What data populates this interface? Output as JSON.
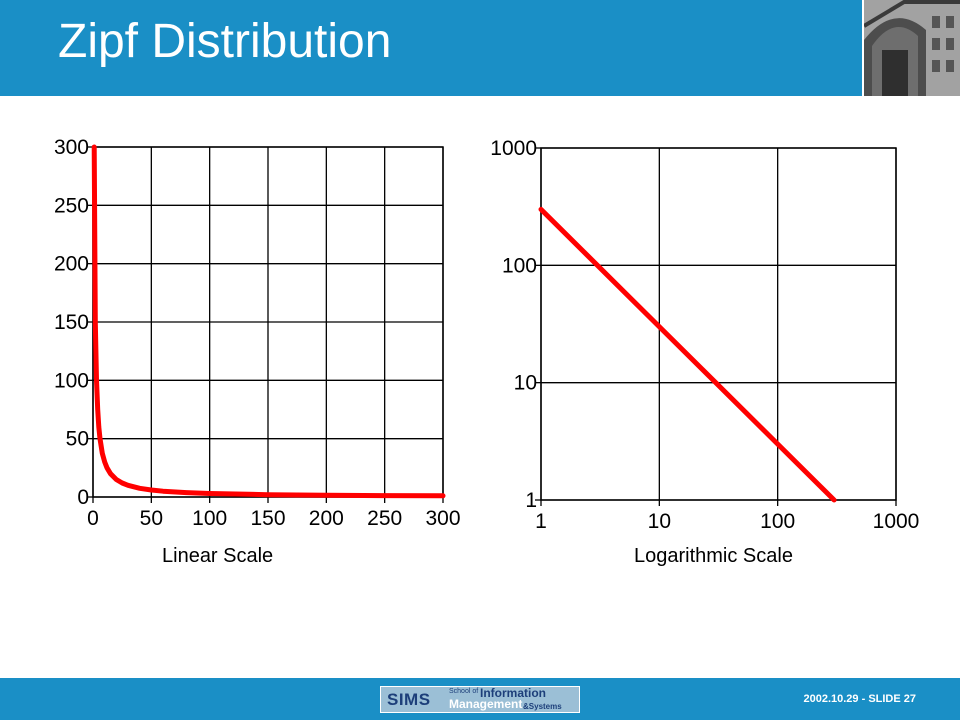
{
  "header": {
    "title": "Zipf Distribution"
  },
  "footer": {
    "date": "2002.10.29",
    "separator": " - ",
    "slide_label": "SLIDE 27",
    "logo": {
      "acronym": "SIMS",
      "school_of": "School of",
      "information": "Information",
      "management": "Management",
      "systems": "&Systems"
    }
  },
  "colors": {
    "header_bg": "#1a8fc6",
    "series": "#ff0000",
    "grid": "#000000"
  },
  "chart_data": [
    {
      "type": "line",
      "caption": "Linear Scale",
      "xscale": "linear",
      "yscale": "linear",
      "xlim": [
        0,
        300
      ],
      "ylim": [
        0,
        300
      ],
      "xticks": [
        0,
        50,
        100,
        150,
        200,
        250,
        300
      ],
      "yticks": [
        0,
        50,
        100,
        150,
        200,
        250,
        300
      ],
      "xtick_labels": [
        "0",
        "50",
        "100",
        "150",
        "200",
        "250",
        "300"
      ],
      "ytick_labels": [
        "0",
        "50",
        "100",
        "150",
        "200",
        "250",
        "300"
      ],
      "grid": true,
      "series": [
        {
          "x": [
            1,
            2,
            3,
            4,
            5,
            6,
            8,
            10,
            12,
            15,
            20,
            25,
            30,
            40,
            50,
            60,
            80,
            100,
            150,
            200,
            250,
            300
          ],
          "values": [
            300,
            150,
            100,
            75,
            60,
            50,
            37.5,
            30,
            25,
            20,
            15,
            12,
            10,
            7.5,
            6,
            5,
            3.75,
            3,
            2,
            1.5,
            1.2,
            1
          ]
        }
      ]
    },
    {
      "type": "line",
      "caption": "Logarithmic Scale",
      "xscale": "log",
      "yscale": "log",
      "xlim": [
        1,
        1000
      ],
      "ylim": [
        1,
        1000
      ],
      "xticks": [
        1,
        10,
        100,
        1000
      ],
      "yticks": [
        1,
        10,
        100,
        1000
      ],
      "xtick_labels": [
        "1",
        "10",
        "100",
        "1000"
      ],
      "ytick_labels": [
        "1",
        "10",
        "100",
        "1000"
      ],
      "grid": true,
      "series": [
        {
          "x": [
            1,
            300
          ],
          "values": [
            300,
            1
          ]
        }
      ]
    }
  ]
}
